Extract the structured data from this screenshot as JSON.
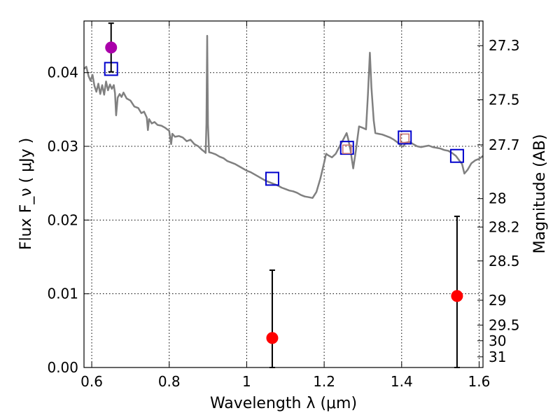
{
  "chart_data": {
    "type": "scatter",
    "xlabel": "Wavelength  λ (μm)",
    "ylabel": "Flux  F_ν  ( μJy )",
    "ylabel_right": "Magnitude (AB)",
    "xlim": [
      0.58,
      1.61
    ],
    "ylim": [
      0.0,
      0.047
    ],
    "grid": true,
    "x_ticks": [
      {
        "value": 0.6,
        "label": "0.6"
      },
      {
        "value": 0.8,
        "label": "0.8"
      },
      {
        "value": 1.0,
        "label": "1"
      },
      {
        "value": 1.2,
        "label": "1.2"
      },
      {
        "value": 1.4,
        "label": "1.4"
      },
      {
        "value": 1.6,
        "label": "1.6"
      }
    ],
    "y_ticks": [
      {
        "value": 0.0,
        "label": "0.00"
      },
      {
        "value": 0.01,
        "label": "0.01"
      },
      {
        "value": 0.02,
        "label": "0.02"
      },
      {
        "value": 0.03,
        "label": "0.03"
      },
      {
        "value": 0.04,
        "label": "0.04"
      }
    ],
    "mag_ticks": [
      {
        "value": 27.3,
        "label": "27.3"
      },
      {
        "value": 27.5,
        "label": "27.5"
      },
      {
        "value": 27.7,
        "label": "27.7"
      },
      {
        "value": 28.0,
        "label": "28"
      },
      {
        "value": 28.2,
        "label": "28.2"
      },
      {
        "value": 28.5,
        "label": "28.5"
      },
      {
        "value": 29.0,
        "label": "29"
      },
      {
        "value": 29.5,
        "label": "29.5"
      },
      {
        "value": 30.0,
        "label": "30"
      },
      {
        "value": 31.0,
        "label": "31"
      }
    ],
    "series": [
      {
        "type": "line",
        "color": "#808080",
        "points": [
          [
            0.58,
            0.0405
          ],
          [
            0.586,
            0.0408
          ],
          [
            0.592,
            0.0395
          ],
          [
            0.597,
            0.0389
          ],
          [
            0.602,
            0.0397
          ],
          [
            0.607,
            0.0382
          ],
          [
            0.612,
            0.0374
          ],
          [
            0.617,
            0.0385
          ],
          [
            0.622,
            0.0371
          ],
          [
            0.627,
            0.0383
          ],
          [
            0.632,
            0.037
          ],
          [
            0.637,
            0.0388
          ],
          [
            0.642,
            0.0376
          ],
          [
            0.647,
            0.0384
          ],
          [
            0.652,
            0.0378
          ],
          [
            0.657,
            0.0383
          ],
          [
            0.66,
            0.0372
          ],
          [
            0.663,
            0.0342
          ],
          [
            0.667,
            0.0366
          ],
          [
            0.672,
            0.0371
          ],
          [
            0.677,
            0.0367
          ],
          [
            0.682,
            0.0373
          ],
          [
            0.69,
            0.0365
          ],
          [
            0.7,
            0.0362
          ],
          [
            0.71,
            0.0354
          ],
          [
            0.72,
            0.0352
          ],
          [
            0.728,
            0.0345
          ],
          [
            0.735,
            0.0347
          ],
          [
            0.742,
            0.0339
          ],
          [
            0.745,
            0.0322
          ],
          [
            0.748,
            0.0337
          ],
          [
            0.755,
            0.0331
          ],
          [
            0.762,
            0.0333
          ],
          [
            0.77,
            0.0329
          ],
          [
            0.78,
            0.0328
          ],
          [
            0.79,
            0.0325
          ],
          [
            0.8,
            0.0321
          ],
          [
            0.805,
            0.0303
          ],
          [
            0.808,
            0.0317
          ],
          [
            0.815,
            0.0313
          ],
          [
            0.825,
            0.0314
          ],
          [
            0.835,
            0.0312
          ],
          [
            0.845,
            0.0307
          ],
          [
            0.855,
            0.0309
          ],
          [
            0.865,
            0.0303
          ],
          [
            0.875,
            0.03
          ],
          [
            0.885,
            0.0295
          ],
          [
            0.89,
            0.0293
          ],
          [
            0.894,
            0.0291
          ],
          [
            0.896,
            0.033
          ],
          [
            0.898,
            0.045
          ],
          [
            0.9,
            0.033
          ],
          [
            0.903,
            0.0292
          ],
          [
            0.91,
            0.0291
          ],
          [
            0.92,
            0.0289
          ],
          [
            0.93,
            0.0286
          ],
          [
            0.94,
            0.0284
          ],
          [
            0.95,
            0.028
          ],
          [
            0.96,
            0.0278
          ],
          [
            0.97,
            0.0276
          ],
          [
            0.98,
            0.0273
          ],
          [
            0.99,
            0.027
          ],
          [
            1.0,
            0.0267
          ],
          [
            1.01,
            0.0265
          ],
          [
            1.02,
            0.0262
          ],
          [
            1.03,
            0.0259
          ],
          [
            1.04,
            0.0256
          ],
          [
            1.05,
            0.0253
          ],
          [
            1.06,
            0.0251
          ],
          [
            1.07,
            0.0249
          ],
          [
            1.08,
            0.0247
          ],
          [
            1.09,
            0.0244
          ],
          [
            1.1,
            0.0242
          ],
          [
            1.11,
            0.024
          ],
          [
            1.12,
            0.0239
          ],
          [
            1.13,
            0.0237
          ],
          [
            1.14,
            0.0234
          ],
          [
            1.15,
            0.0232
          ],
          [
            1.16,
            0.0231
          ],
          [
            1.17,
            0.023
          ],
          [
            1.18,
            0.0238
          ],
          [
            1.19,
            0.0256
          ],
          [
            1.2,
            0.0278
          ],
          [
            1.205,
            0.029
          ],
          [
            1.21,
            0.0288
          ],
          [
            1.22,
            0.0285
          ],
          [
            1.23,
            0.029
          ],
          [
            1.24,
            0.03
          ],
          [
            1.25,
            0.031
          ],
          [
            1.258,
            0.0318
          ],
          [
            1.262,
            0.031
          ],
          [
            1.268,
            0.0295
          ],
          [
            1.275,
            0.027
          ],
          [
            1.282,
            0.0295
          ],
          [
            1.29,
            0.0327
          ],
          [
            1.3,
            0.0325
          ],
          [
            1.308,
            0.0323
          ],
          [
            1.313,
            0.037
          ],
          [
            1.318,
            0.0427
          ],
          [
            1.322,
            0.038
          ],
          [
            1.328,
            0.0335
          ],
          [
            1.332,
            0.0318
          ],
          [
            1.34,
            0.0317
          ],
          [
            1.35,
            0.0316
          ],
          [
            1.36,
            0.0314
          ],
          [
            1.37,
            0.0312
          ],
          [
            1.38,
            0.0309
          ],
          [
            1.39,
            0.0305
          ],
          [
            1.4,
            0.03
          ],
          [
            1.405,
            0.03
          ],
          [
            1.41,
            0.0305
          ],
          [
            1.42,
            0.0306
          ],
          [
            1.43,
            0.0303
          ],
          [
            1.44,
            0.03
          ],
          [
            1.45,
            0.0299
          ],
          [
            1.46,
            0.03
          ],
          [
            1.47,
            0.0301
          ],
          [
            1.48,
            0.0299
          ],
          [
            1.49,
            0.0298
          ],
          [
            1.5,
            0.0297
          ],
          [
            1.51,
            0.0295
          ],
          [
            1.52,
            0.0294
          ],
          [
            1.53,
            0.0291
          ],
          [
            1.54,
            0.0287
          ],
          [
            1.55,
            0.028
          ],
          [
            1.556,
            0.0276
          ],
          [
            1.562,
            0.0263
          ],
          [
            1.57,
            0.0268
          ],
          [
            1.58,
            0.0277
          ],
          [
            1.59,
            0.0281
          ],
          [
            1.6,
            0.0283
          ],
          [
            1.61,
            0.0287
          ]
        ]
      },
      {
        "type": "open-square",
        "color": "#0000cc",
        "points": [
          [
            0.65,
            0.0405
          ],
          [
            1.066,
            0.0256
          ],
          [
            1.259,
            0.0298
          ],
          [
            1.408,
            0.0312
          ],
          [
            1.543,
            0.0287
          ]
        ]
      },
      {
        "type": "open-square",
        "color": "#c87070",
        "size": "small",
        "points": [
          [
            1.259,
            0.0296
          ],
          [
            1.408,
            0.0311
          ]
        ]
      },
      {
        "type": "errorbar-point",
        "color": "#aa00aa",
        "points": [
          [
            0.65,
            0.0434,
            0.0401,
            0.0467
          ]
        ]
      },
      {
        "type": "errorbar-point",
        "color": "#ff0000",
        "points": [
          [
            1.066,
            0.004,
            0.0,
            0.0132
          ],
          [
            1.543,
            0.0097,
            0.0,
            0.0205
          ]
        ]
      }
    ]
  }
}
